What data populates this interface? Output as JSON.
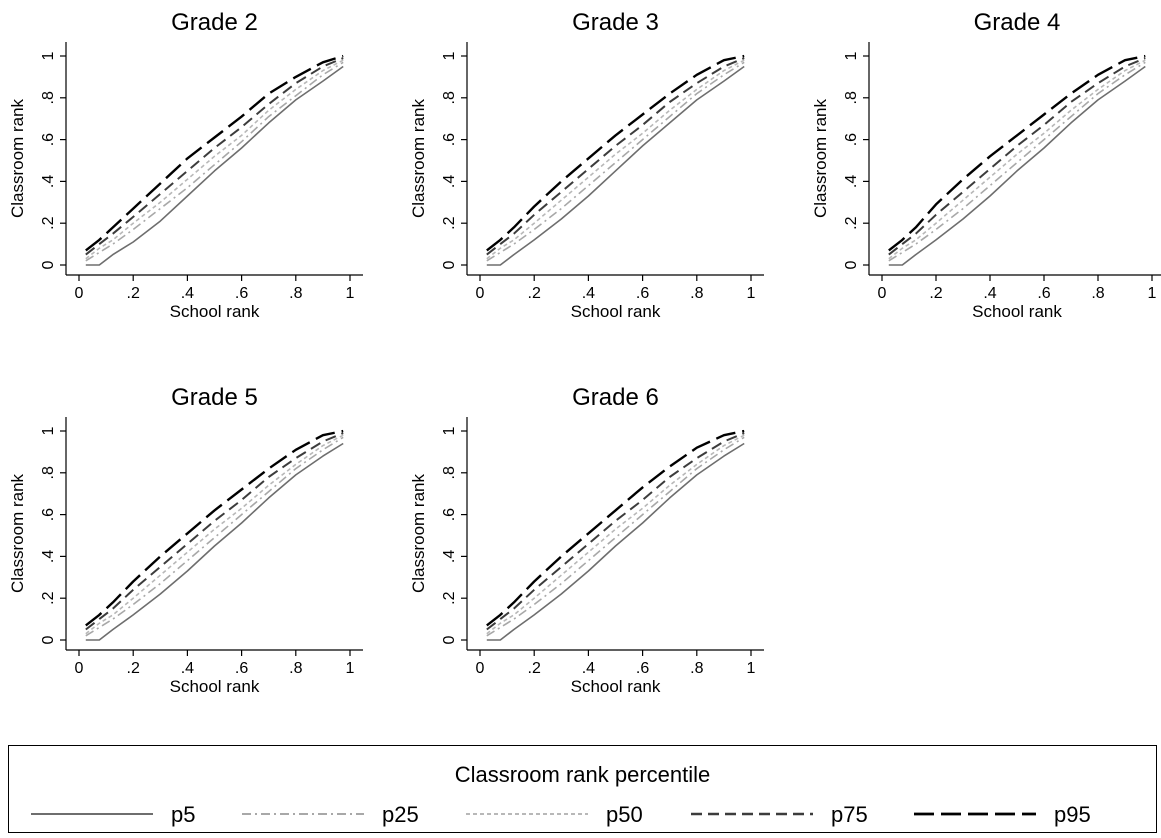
{
  "chart_data": {
    "type": "line",
    "panel_xlabel": "School rank",
    "panel_ylabel": "Classroom rank",
    "xlim": [
      0,
      1
    ],
    "ylim": [
      0,
      1
    ],
    "x_ticks": [
      "0",
      ".2",
      ".4",
      ".6",
      ".8",
      "1"
    ],
    "y_ticks": [
      "0",
      ".2",
      ".4",
      ".6",
      ".8",
      "1"
    ],
    "grid": false,
    "legend_title": "Classroom rank percentile",
    "legend_position": "bottom",
    "series_styles": [
      {
        "name": "p5",
        "color": "#6e6e6e",
        "dash": "solid"
      },
      {
        "name": "p25",
        "color": "#a8a8a8",
        "dash": "dash-dot"
      },
      {
        "name": "p50",
        "color": "#b8b8b8",
        "dash": "short-dash"
      },
      {
        "name": "p75",
        "color": "#3c3c3c",
        "dash": "dash"
      },
      {
        "name": "p95",
        "color": "#000000",
        "dash": "long-dash"
      }
    ],
    "x": [
      0.025,
      0.075,
      0.125,
      0.2,
      0.3,
      0.4,
      0.5,
      0.6,
      0.7,
      0.8,
      0.9,
      0.975
    ],
    "panels": [
      {
        "title": "Grade 2",
        "series": [
          {
            "name": "p5",
            "values": [
              0,
              0,
              0.05,
              0.11,
              0.21,
              0.33,
              0.45,
              0.56,
              0.68,
              0.79,
              0.88,
              0.95
            ]
          },
          {
            "name": "p25",
            "values": [
              0.02,
              0.06,
              0.1,
              0.17,
              0.27,
              0.37,
              0.48,
              0.59,
              0.71,
              0.81,
              0.91,
              0.97
            ]
          },
          {
            "name": "p50",
            "values": [
              0.03,
              0.08,
              0.12,
              0.2,
              0.3,
              0.41,
              0.52,
              0.62,
              0.74,
              0.84,
              0.93,
              0.98
            ]
          },
          {
            "name": "p75",
            "values": [
              0.05,
              0.1,
              0.15,
              0.23,
              0.34,
              0.45,
              0.56,
              0.66,
              0.77,
              0.87,
              0.95,
              0.99
            ]
          },
          {
            "name": "p95",
            "values": [
              0.07,
              0.12,
              0.18,
              0.27,
              0.39,
              0.51,
              0.61,
              0.71,
              0.82,
              0.9,
              0.97,
              1.0
            ]
          }
        ]
      },
      {
        "title": "Grade 3",
        "series": [
          {
            "name": "p5",
            "values": [
              0,
              0,
              0.05,
              0.12,
              0.22,
              0.33,
              0.45,
              0.57,
              0.68,
              0.79,
              0.88,
              0.95
            ]
          },
          {
            "name": "p25",
            "values": [
              0.02,
              0.06,
              0.1,
              0.17,
              0.27,
              0.38,
              0.49,
              0.6,
              0.71,
              0.82,
              0.91,
              0.97
            ]
          },
          {
            "name": "p50",
            "values": [
              0.03,
              0.08,
              0.12,
              0.2,
              0.31,
              0.42,
              0.53,
              0.63,
              0.74,
              0.84,
              0.93,
              0.98
            ]
          },
          {
            "name": "p75",
            "values": [
              0.05,
              0.1,
              0.15,
              0.24,
              0.35,
              0.46,
              0.57,
              0.67,
              0.78,
              0.87,
              0.95,
              0.99
            ]
          },
          {
            "name": "p95",
            "values": [
              0.07,
              0.12,
              0.18,
              0.28,
              0.4,
              0.51,
              0.62,
              0.72,
              0.82,
              0.91,
              0.98,
              1.0
            ]
          }
        ]
      },
      {
        "title": "Grade 4",
        "series": [
          {
            "name": "p5",
            "values": [
              0,
              0,
              0.05,
              0.12,
              0.22,
              0.33,
              0.45,
              0.56,
              0.68,
              0.79,
              0.88,
              0.95
            ]
          },
          {
            "name": "p25",
            "values": [
              0.02,
              0.06,
              0.1,
              0.17,
              0.27,
              0.38,
              0.49,
              0.6,
              0.71,
              0.82,
              0.91,
              0.97
            ]
          },
          {
            "name": "p50",
            "values": [
              0.03,
              0.08,
              0.12,
              0.2,
              0.31,
              0.42,
              0.53,
              0.63,
              0.74,
              0.84,
              0.93,
              0.98
            ]
          },
          {
            "name": "p75",
            "values": [
              0.05,
              0.1,
              0.15,
              0.24,
              0.35,
              0.46,
              0.57,
              0.67,
              0.78,
              0.87,
              0.95,
              0.99
            ]
          },
          {
            "name": "p95",
            "values": [
              0.07,
              0.12,
              0.18,
              0.29,
              0.41,
              0.52,
              0.62,
              0.72,
              0.82,
              0.91,
              0.98,
              1.0
            ]
          }
        ]
      },
      {
        "title": "Grade 5",
        "series": [
          {
            "name": "p5",
            "values": [
              0,
              0,
              0.05,
              0.12,
              0.22,
              0.33,
              0.45,
              0.56,
              0.68,
              0.79,
              0.88,
              0.94
            ]
          },
          {
            "name": "p25",
            "values": [
              0.02,
              0.06,
              0.1,
              0.17,
              0.27,
              0.38,
              0.49,
              0.6,
              0.71,
              0.82,
              0.91,
              0.97
            ]
          },
          {
            "name": "p50",
            "values": [
              0.03,
              0.08,
              0.12,
              0.2,
              0.31,
              0.42,
              0.53,
              0.63,
              0.74,
              0.84,
              0.93,
              0.98
            ]
          },
          {
            "name": "p75",
            "values": [
              0.05,
              0.1,
              0.15,
              0.24,
              0.35,
              0.46,
              0.57,
              0.67,
              0.78,
              0.87,
              0.95,
              0.99
            ]
          },
          {
            "name": "p95",
            "values": [
              0.07,
              0.12,
              0.18,
              0.28,
              0.4,
              0.51,
              0.62,
              0.72,
              0.82,
              0.91,
              0.98,
              1.0
            ]
          }
        ]
      },
      {
        "title": "Grade 6",
        "series": [
          {
            "name": "p5",
            "values": [
              0,
              0,
              0.05,
              0.12,
              0.22,
              0.33,
              0.45,
              0.56,
              0.68,
              0.79,
              0.88,
              0.94
            ]
          },
          {
            "name": "p25",
            "values": [
              0.02,
              0.06,
              0.1,
              0.17,
              0.27,
              0.38,
              0.49,
              0.6,
              0.71,
              0.82,
              0.91,
              0.97
            ]
          },
          {
            "name": "p50",
            "values": [
              0.03,
              0.08,
              0.12,
              0.2,
              0.31,
              0.42,
              0.53,
              0.63,
              0.74,
              0.84,
              0.93,
              0.98
            ]
          },
          {
            "name": "p75",
            "values": [
              0.05,
              0.1,
              0.15,
              0.24,
              0.35,
              0.46,
              0.57,
              0.67,
              0.78,
              0.87,
              0.95,
              0.99
            ]
          },
          {
            "name": "p95",
            "values": [
              0.07,
              0.12,
              0.18,
              0.28,
              0.4,
              0.51,
              0.62,
              0.73,
              0.83,
              0.92,
              0.98,
              1.0
            ]
          }
        ]
      }
    ]
  }
}
